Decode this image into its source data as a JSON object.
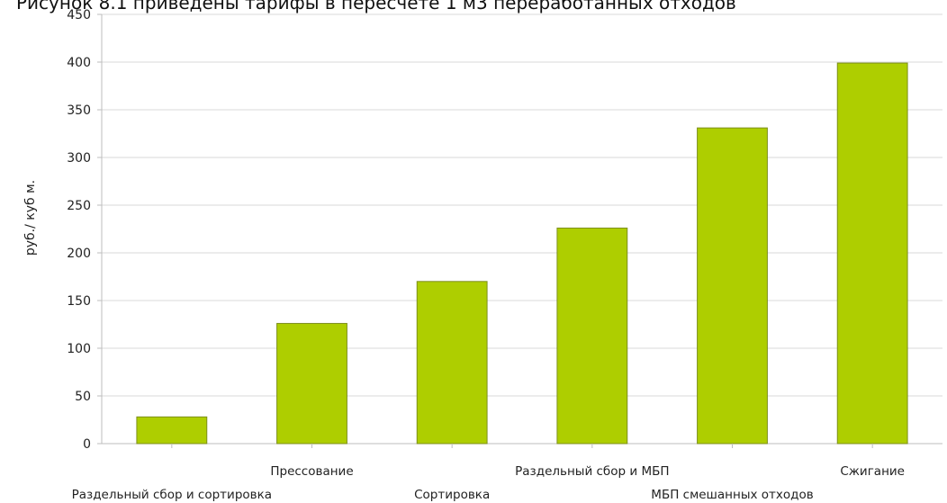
{
  "caption": "Рисунок 8.1 приведены тарифы в пересчете 1 м3 переработанных отходов",
  "chart_data": {
    "type": "bar",
    "title": "",
    "xlabel": "",
    "ylabel": "руб./ куб м.",
    "ylim": [
      0,
      450
    ],
    "yticks": [
      0,
      50,
      100,
      150,
      200,
      250,
      300,
      350,
      400,
      450
    ],
    "categories": [
      "Раздельный сбор и сортировка",
      "Прессование",
      "Сортировка",
      "Раздельный сбор и МБП",
      "МБП смешанных отходов",
      "Сжигание"
    ],
    "values": [
      28,
      126,
      170,
      226,
      331,
      399
    ],
    "grid": true,
    "bar_color": "#aece00",
    "bar_edge_color": "#7d8f1c",
    "grid_color": "#d9d9d9"
  }
}
